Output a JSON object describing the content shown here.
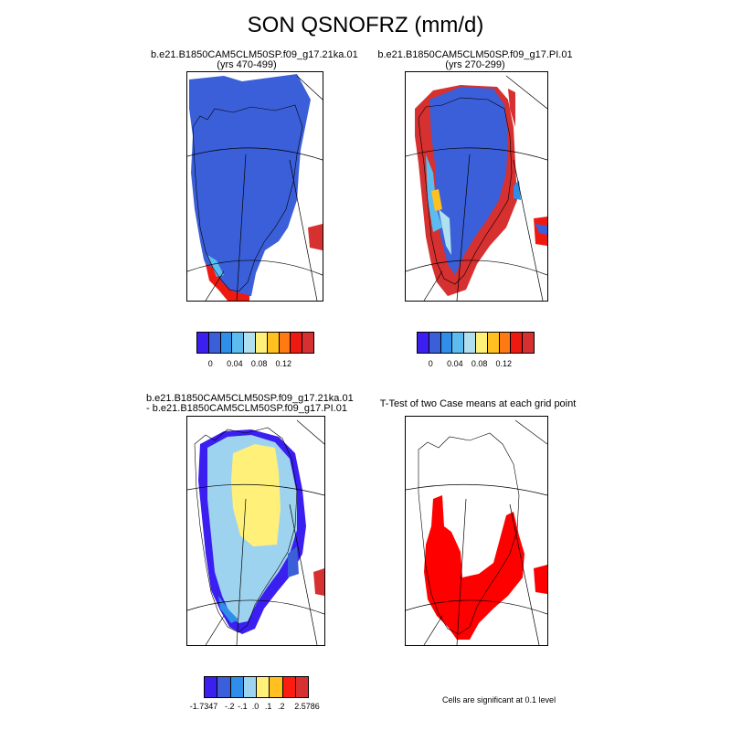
{
  "title": "SON QSNOFRZ (mm/d)",
  "panels": [
    {
      "id": "p1",
      "line1": "b.e21.B1850CAM5CLM50SP.f09_g17.21ka.01",
      "line2": "(yrs 470-499)"
    },
    {
      "id": "p2",
      "line1": "b.e21.B1850CAM5CLM50SP.f09_g17.PI.01",
      "line2": "(yrs 270-299)"
    },
    {
      "id": "p3",
      "line1": "b.e21.B1850CAM5CLM50SP.f09_g17.21ka.01",
      "line2": "- b.e21.B1850CAM5CLM50SP.f09_g17.PI.01"
    },
    {
      "id": "p4",
      "line1": "T-Test of two Case means at each grid point",
      "line2": ""
    }
  ],
  "colorbars": {
    "abs": {
      "colors": [
        "#3b1ff0",
        "#3b5fd9",
        "#2f8fe8",
        "#5cbcf0",
        "#b0dff0",
        "#fff07a",
        "#ffc020",
        "#ff7a12",
        "#ee1a12",
        "#d63030"
      ],
      "labels": [
        "0",
        "0.04",
        "0.08",
        "0.12"
      ]
    },
    "diff": {
      "colors": [
        "#3b1ff0",
        "#3b5fd9",
        "#2f8fe8",
        "#9ed3f0",
        "#fff07a",
        "#ffc020",
        "#ff1a12",
        "#d63030"
      ],
      "labels": [
        "-1.7347",
        "-.2",
        "-.1",
        ".0",
        ".1",
        ".2",
        "2.5786"
      ]
    }
  },
  "significance_note": "Cells are significant at 0.1 level"
}
